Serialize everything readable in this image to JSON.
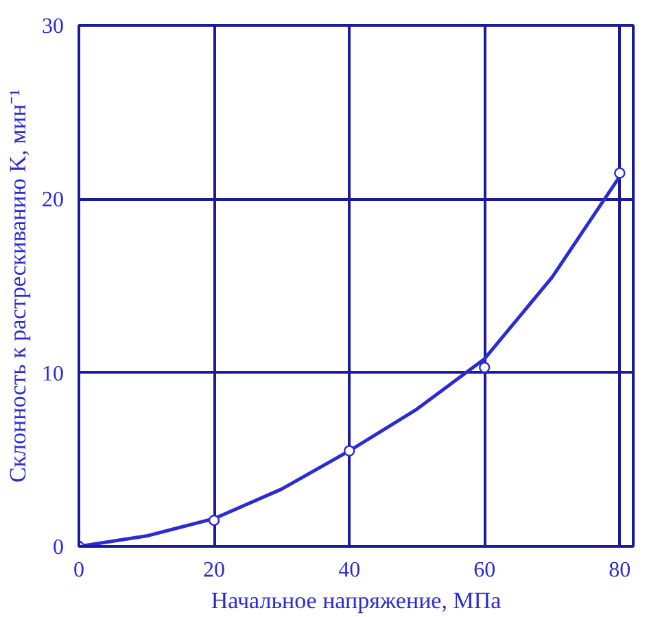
{
  "chart_data": {
    "type": "line",
    "xlabel": "Начальное напряжение, МПа",
    "ylabel": "Склонность к растрескиванию K, мин⁻¹",
    "x": [
      0,
      20,
      40,
      60,
      80
    ],
    "series": [
      {
        "color": "#2b2bd6",
        "x": [
          0,
          10,
          20,
          30,
          40,
          50,
          60,
          70,
          80
        ],
        "values": [
          0,
          0.6,
          1.6,
          3.3,
          5.5,
          7.9,
          10.8,
          15.5,
          21.3
        ]
      },
      {
        "type": "scatter",
        "marker": "circle",
        "color": "#2b2bd6",
        "values": [
          0,
          1.5,
          5.5,
          10.3,
          21.5
        ]
      }
    ],
    "xlim": [
      0,
      82
    ],
    "ylim": [
      0,
      30
    ],
    "xticks": [
      0,
      20,
      40,
      60,
      80
    ],
    "yticks": [
      0,
      10,
      20,
      30
    ],
    "grid": true,
    "line_style": "solid"
  }
}
